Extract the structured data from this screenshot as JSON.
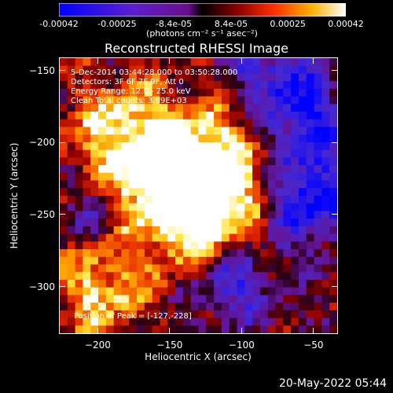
{
  "colorbar": {
    "ticks": [
      "-0.00042",
      "-0.00025",
      "-8.4e-05",
      "8.4e-05",
      "0.00025",
      "0.00042"
    ],
    "unit": "(photons cm⁻² s⁻¹ asec⁻²)",
    "range": [
      -0.00042,
      0.00042
    ]
  },
  "chart_data": {
    "type": "heatmap",
    "title": "Reconstructed RHESSI Image",
    "xlabel": "Heliocentric X (arcsec)",
    "ylabel": "Heliocentric Y (arcsec)",
    "xlim": [
      -227,
      -33
    ],
    "ylim": [
      -333,
      -141
    ],
    "x_ticks": [
      "-200",
      "-150",
      "-100",
      "-50"
    ],
    "y_ticks": [
      "-150",
      "-200",
      "-250",
      "-300"
    ],
    "peak": [
      -127,
      -228
    ],
    "annotations": {
      "time": "5-Dec-2014 03:44:28.000 to 03:50:28.000",
      "detectors": "Detectors: 3F 6F 7F 9F, Att 0",
      "energy": "Energy Range: 12.0 - 25.0 keV",
      "clean": "Clean     Total counts: 3.99E+03",
      "peak": "Position of Peak = [-127,-228]"
    }
  },
  "timestamp": "20-May-2022 05:44"
}
